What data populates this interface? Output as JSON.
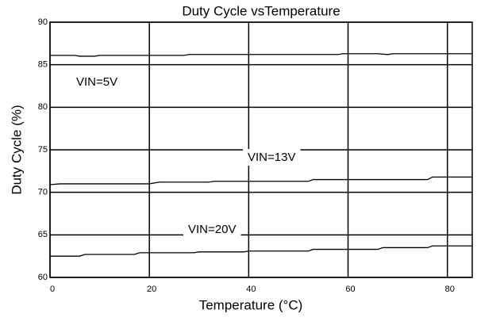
{
  "chart_data": {
    "type": "line",
    "title": "Duty Cycle vsTemperature",
    "x_label": "Temperature (°C)",
    "y_label": "Duty Cycle (%)",
    "xlim": [
      0,
      85
    ],
    "xticks": [
      0,
      20,
      40,
      60,
      80
    ],
    "ylim": [
      60,
      90
    ],
    "yticks": [
      60,
      65,
      70,
      75,
      80,
      85,
      90
    ],
    "grid": true,
    "color": "#000000",
    "series": [
      {
        "name": "VIN=5V",
        "color": "#000000",
        "x": [
          0,
          5,
          6,
          9,
          10,
          27,
          28,
          58,
          59,
          66,
          68,
          69,
          85
        ],
        "values": [
          86.1,
          86.1,
          86.0,
          86.0,
          86.1,
          86.1,
          86.2,
          86.2,
          86.3,
          86.3,
          86.2,
          86.3,
          86.3
        ]
      },
      {
        "name": "VIN=13V",
        "color": "#000000",
        "x": [
          0,
          2,
          20,
          22,
          32,
          33,
          52,
          53,
          76,
          77,
          85
        ],
        "values": [
          70.9,
          71.0,
          71.0,
          71.2,
          71.2,
          71.3,
          71.3,
          71.5,
          71.5,
          71.8,
          71.8
        ]
      },
      {
        "name": "VIN=20V",
        "color": "#000000",
        "x": [
          0,
          6,
          7,
          17,
          18,
          29,
          30,
          39,
          40,
          52,
          53,
          66,
          67,
          76,
          77,
          85
        ],
        "values": [
          62.5,
          62.5,
          62.7,
          62.7,
          62.9,
          62.9,
          63.0,
          63.0,
          63.1,
          63.1,
          63.3,
          63.3,
          63.5,
          63.5,
          63.7,
          63.7
        ]
      }
    ]
  }
}
